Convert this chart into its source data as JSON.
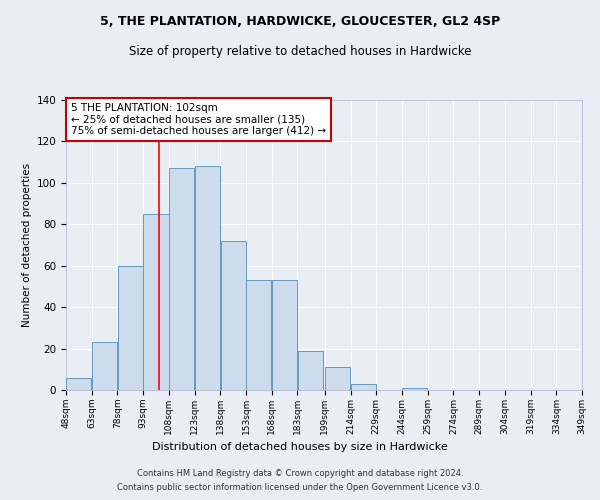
{
  "title1": "5, THE PLANTATION, HARDWICKE, GLOUCESTER, GL2 4SP",
  "title2": "Size of property relative to detached houses in Hardwicke",
  "xlabel": "Distribution of detached houses by size in Hardwicke",
  "ylabel": "Number of detached properties",
  "footer1": "Contains HM Land Registry data © Crown copyright and database right 2024.",
  "footer2": "Contains public sector information licensed under the Open Government Licence v3.0.",
  "annotation_line1": "5 THE PLANTATION: 102sqm",
  "annotation_line2": "← 25% of detached houses are smaller (135)",
  "annotation_line3": "75% of semi-detached houses are larger (412) →",
  "bar_color": "#ccdcec",
  "bar_edge_color": "#6699bb",
  "red_line_x": 102,
  "bins": [
    48,
    63,
    78,
    93,
    108,
    123,
    138,
    153,
    168,
    183,
    199,
    214,
    229,
    244,
    259,
    274,
    289,
    304,
    319,
    334,
    349
  ],
  "values": [
    6,
    23,
    60,
    85,
    107,
    108,
    72,
    53,
    53,
    19,
    11,
    3,
    0,
    1,
    0,
    0,
    0,
    0,
    0,
    0,
    1
  ],
  "ylim": [
    0,
    140
  ],
  "yticks": [
    0,
    20,
    40,
    60,
    80,
    100,
    120,
    140
  ],
  "bg_color": "#e8eef4",
  "plot_bg_color": "#e8eef4",
  "grid_color": "#ffffff",
  "annotation_box_color": "#ffffff",
  "annotation_box_edge": "#cc0000",
  "title1_fontsize": 9,
  "title2_fontsize": 8.5,
  "ylabel_fontsize": 7.5,
  "xlabel_fontsize": 8,
  "ytick_fontsize": 7.5,
  "xtick_fontsize": 6.5,
  "annotation_fontsize": 7.5,
  "footer_fontsize": 6
}
